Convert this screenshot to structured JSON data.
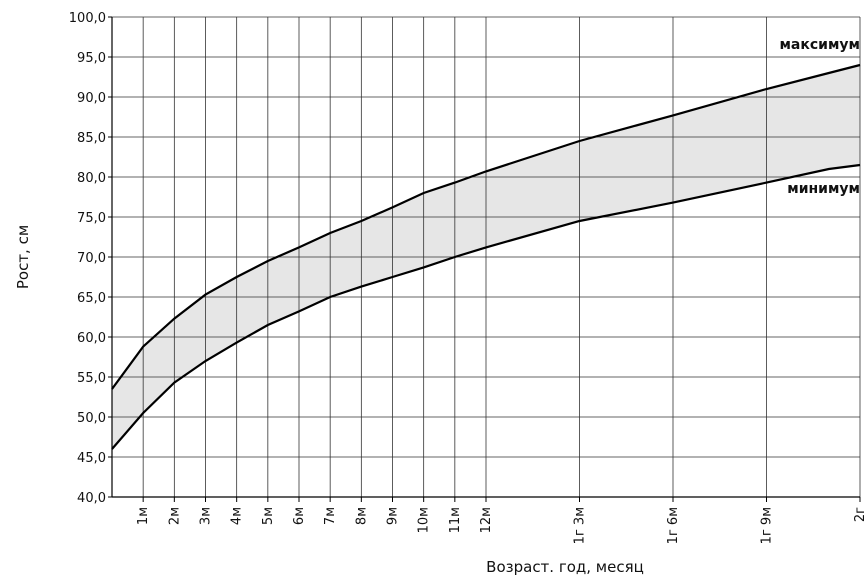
{
  "chart_data": {
    "type": "line",
    "x_label": "Возраст. год, месяц",
    "y_label": "Рост, см",
    "x": [
      0,
      1,
      2,
      3,
      4,
      5,
      6,
      7,
      8,
      9,
      10,
      11,
      12,
      15,
      18,
      21,
      23,
      24
    ],
    "series": [
      {
        "name": "максимум",
        "color": "#000000",
        "values": [
          53.5,
          58.8,
          62.3,
          65.3,
          67.5,
          69.5,
          71.2,
          73,
          74.5,
          76.2,
          78,
          79.3,
          80.7,
          84.5,
          87.7,
          91,
          93,
          94
        ]
      },
      {
        "name": "минимум",
        "color": "#000000",
        "values": [
          46,
          50.5,
          54.3,
          57,
          59.3,
          61.5,
          63.2,
          65,
          66.3,
          67.5,
          68.7,
          70,
          71.2,
          74.5,
          76.8,
          79.3,
          81,
          81.5
        ]
      }
    ],
    "band_color": "#e6e6e6",
    "xlim": [
      0,
      24
    ],
    "xticks": [
      {
        "value": 1,
        "label": "1м"
      },
      {
        "value": 2,
        "label": "2м"
      },
      {
        "value": 3,
        "label": "3м"
      },
      {
        "value": 4,
        "label": "4м"
      },
      {
        "value": 5,
        "label": "5м"
      },
      {
        "value": 6,
        "label": "6м"
      },
      {
        "value": 7,
        "label": "7м"
      },
      {
        "value": 8,
        "label": "8м"
      },
      {
        "value": 9,
        "label": "9м"
      },
      {
        "value": 10,
        "label": "10м"
      },
      {
        "value": 11,
        "label": "11м"
      },
      {
        "value": 12,
        "label": "12м"
      },
      {
        "value": 15,
        "label": "1г 3м"
      },
      {
        "value": 18,
        "label": "1г 6м"
      },
      {
        "value": 21,
        "label": "1г 9м"
      },
      {
        "value": 24,
        "label": "2г"
      }
    ],
    "ylim": [
      40,
      100
    ],
    "yticks": [
      {
        "value": 40,
        "label": "40,0"
      },
      {
        "value": 45,
        "label": "45,0"
      },
      {
        "value": 50,
        "label": "50,0"
      },
      {
        "value": 55,
        "label": "55,0"
      },
      {
        "value": 60,
        "label": "60,0"
      },
      {
        "value": 65,
        "label": "65,0"
      },
      {
        "value": 70,
        "label": "70,0"
      },
      {
        "value": 75,
        "label": "75,0"
      },
      {
        "value": 80,
        "label": "80,0"
      },
      {
        "value": 85,
        "label": "85,0"
      },
      {
        "value": 90,
        "label": "90,0"
      },
      {
        "value": 95,
        "label": "95,0"
      },
      {
        "value": 100,
        "label": "100,0"
      }
    ],
    "grid": true
  }
}
